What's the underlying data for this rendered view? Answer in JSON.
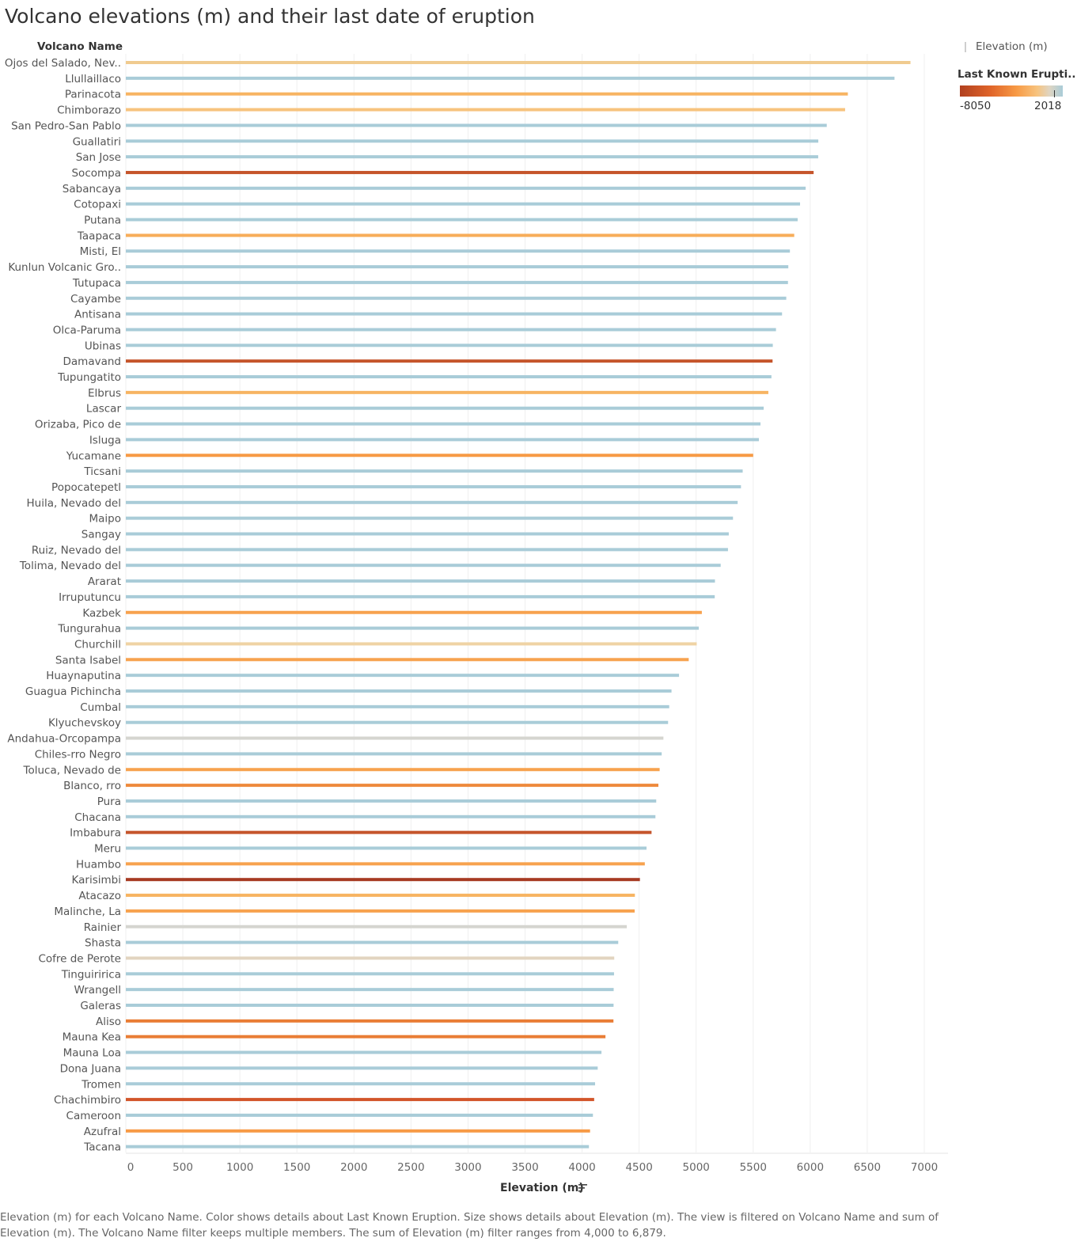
{
  "title": "Volcano elevations (m) and their last date of eruption",
  "row_header": "Volcano Name",
  "legend": {
    "size_label": "Elevation (m)",
    "color_title": "Last Known Erupti..",
    "color_min": "-8050",
    "color_max": "2018",
    "colors": [
      "#b1401f",
      "#e0652a",
      "#f79a45",
      "#f7c37e",
      "#dfd5c2",
      "#a9ccd8"
    ]
  },
  "caption": "Elevation (m) for each Volcano Name.  Color shows details about Last Known Eruption.  Size shows details about Elevation (m). The view is filtered on Volcano Name and sum of Elevation (m). The Volcano Name filter keeps multiple members. The sum of Elevation (m) filter ranges from 4,000 to 6,879.",
  "chart_data": {
    "type": "bar",
    "orientation": "horizontal",
    "title": "Volcano elevations (m) and their last date of eruption",
    "xlabel": "Elevation (m)",
    "ylabel": "Volcano Name",
    "xlim": [
      0,
      7000
    ],
    "xticks": [
      0,
      500,
      1000,
      1500,
      2000,
      2500,
      3000,
      3500,
      4000,
      4500,
      5000,
      5500,
      6000,
      6500,
      7000
    ],
    "grid": "vertical",
    "legend_position": "top-right",
    "color_encoding": "Last Known Eruption",
    "size_encoding": "Elevation (m)",
    "categories": [
      "Ojos del Salado, Nev..",
      "Llullaillaco",
      "Parinacota",
      "Chimborazo",
      "San Pedro-San Pablo",
      "Guallatiri",
      "San Jose",
      "Socompa",
      "Sabancaya",
      "Cotopaxi",
      "Putana",
      "Taapaca",
      "Misti, El",
      "Kunlun Volcanic Gro..",
      "Tutupaca",
      "Cayambe",
      "Antisana",
      "Olca-Paruma",
      "Ubinas",
      "Damavand",
      "Tupungatito",
      "Elbrus",
      "Lascar",
      "Orizaba, Pico de",
      "Isluga",
      "Yucamane",
      "Ticsani",
      "Popocatepetl",
      "Huila, Nevado del",
      "Maipo",
      "Sangay",
      "Ruiz, Nevado del",
      "Tolima, Nevado del",
      "Ararat",
      "Irruputuncu",
      "Kazbek",
      "Tungurahua",
      "Churchill",
      "Santa Isabel",
      "Huaynaputina",
      "Guagua Pichincha",
      "Cumbal",
      "Klyuchevskoy",
      "Andahua-Orcopampa",
      "Chiles-rro Negro",
      "Toluca, Nevado de",
      "Blanco, rro",
      "Pura",
      "Chacana",
      "Imbabura",
      "Meru",
      "Huambo",
      "Karisimbi",
      "Atacazo",
      "Malinche, La",
      "Rainier",
      "Shasta",
      "Cofre de Perote",
      "Tinguiririca",
      "Wrangell",
      "Galeras",
      "Aliso",
      "Mauna Kea",
      "Mauna Loa",
      "Dona Juana",
      "Tromen",
      "Chachimbiro",
      "Cameroon",
      "Azufral",
      "Tacana"
    ],
    "values": [
      6879,
      6739,
      6330,
      6306,
      6145,
      6071,
      6070,
      6030,
      5960,
      5911,
      5890,
      5860,
      5822,
      5808,
      5805,
      5790,
      5753,
      5700,
      5672,
      5670,
      5660,
      5633,
      5592,
      5564,
      5550,
      5500,
      5408,
      5393,
      5364,
      5323,
      5286,
      5279,
      5215,
      5165,
      5163,
      5050,
      5023,
      5005,
      4935,
      4850,
      4784,
      4764,
      4754,
      4713,
      4698,
      4680,
      4669,
      4650,
      4643,
      4609,
      4565,
      4550,
      4507,
      4463,
      4461,
      4392,
      4317,
      4282,
      4280,
      4277,
      4276,
      4275,
      4205,
      4170,
      4137,
      4114,
      4106,
      4095,
      4070,
      4060
    ],
    "colors": [
      "#f0cb8f",
      "#a9ccd8",
      "#f7b462",
      "#f7c37e",
      "#a9ccd8",
      "#a9ccd8",
      "#a9ccd8",
      "#c5552b",
      "#a9ccd8",
      "#a9ccd8",
      "#a9ccd8",
      "#f7ad5a",
      "#a9ccd8",
      "#a9ccd8",
      "#a9ccd8",
      "#a9ccd8",
      "#a9ccd8",
      "#a9ccd8",
      "#a9ccd8",
      "#c5552b",
      "#a9ccd8",
      "#f7b462",
      "#a9ccd8",
      "#a9ccd8",
      "#a9ccd8",
      "#f79a45",
      "#a9ccd8",
      "#a9ccd8",
      "#a9ccd8",
      "#a9ccd8",
      "#a9ccd8",
      "#a9ccd8",
      "#a9ccd8",
      "#a9ccd8",
      "#a9ccd8",
      "#f7a24e",
      "#a9ccd8",
      "#efd3a4",
      "#f7a24e",
      "#a9ccd8",
      "#a9ccd8",
      "#a9ccd8",
      "#a9ccd8",
      "#d5d5d0",
      "#a9ccd8",
      "#f7a24e",
      "#ee8a3c",
      "#a9ccd8",
      "#a9ccd8",
      "#c5552b",
      "#a9ccd8",
      "#f7a24e",
      "#a63a22",
      "#f7b462",
      "#f7a24e",
      "#d5d5d0",
      "#a9ccd8",
      "#e2d4c0",
      "#a9ccd8",
      "#a9ccd8",
      "#a9ccd8",
      "#e97d35",
      "#e97d35",
      "#a9ccd8",
      "#a9ccd8",
      "#a9ccd8",
      "#d2552a",
      "#a9ccd8",
      "#f79a45",
      "#a9ccd8"
    ]
  }
}
